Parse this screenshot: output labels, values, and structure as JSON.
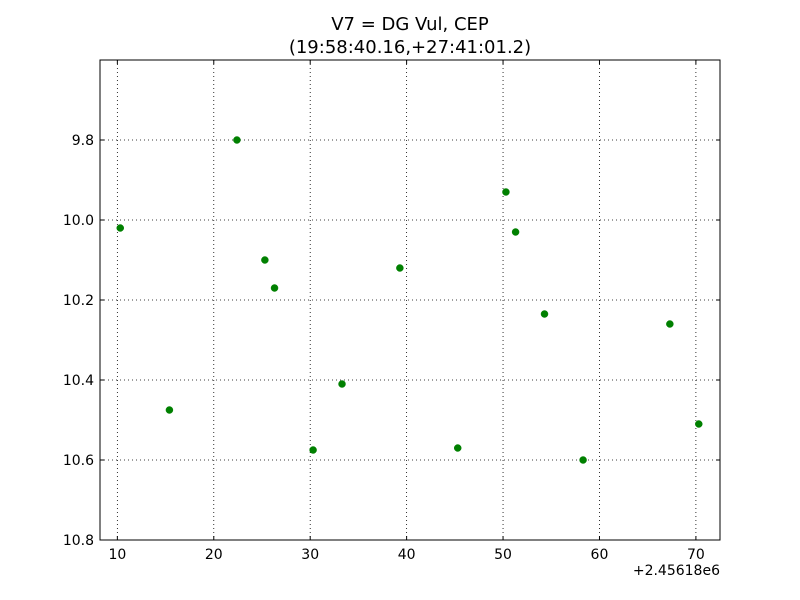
{
  "chart_data": {
    "type": "scatter",
    "title": "V7 = DG Vul, CEP",
    "subtitle": "(19:58:40.16,+27:41:01.2)",
    "xlabel": "",
    "ylabel": "",
    "x_offset_label": "+2.45618e6",
    "xlim": [
      8.2,
      72.5
    ],
    "ylim": [
      10.8,
      9.6
    ],
    "y_inverted": true,
    "grid": true,
    "x_ticks": [
      10,
      20,
      30,
      40,
      50,
      60,
      70
    ],
    "x_tick_labels": [
      "10",
      "20",
      "30",
      "40",
      "50",
      "60",
      "70"
    ],
    "y_ticks": [
      9.8,
      10.0,
      10.2,
      10.4,
      10.6,
      10.8
    ],
    "y_tick_labels": [
      "9.8",
      "10.0",
      "10.2",
      "10.4",
      "10.6",
      "10.8"
    ],
    "marker_color": "#008000",
    "points": [
      {
        "x": 10.3,
        "y": 10.02
      },
      {
        "x": 15.4,
        "y": 10.475
      },
      {
        "x": 22.4,
        "y": 9.8
      },
      {
        "x": 25.3,
        "y": 10.1
      },
      {
        "x": 26.3,
        "y": 10.17
      },
      {
        "x": 30.3,
        "y": 10.575
      },
      {
        "x": 33.3,
        "y": 10.41
      },
      {
        "x": 39.3,
        "y": 10.12
      },
      {
        "x": 45.3,
        "y": 10.57
      },
      {
        "x": 50.3,
        "y": 9.93
      },
      {
        "x": 51.3,
        "y": 10.03
      },
      {
        "x": 54.3,
        "y": 10.235
      },
      {
        "x": 58.3,
        "y": 10.6
      },
      {
        "x": 67.3,
        "y": 10.26
      },
      {
        "x": 70.3,
        "y": 10.51
      }
    ]
  }
}
